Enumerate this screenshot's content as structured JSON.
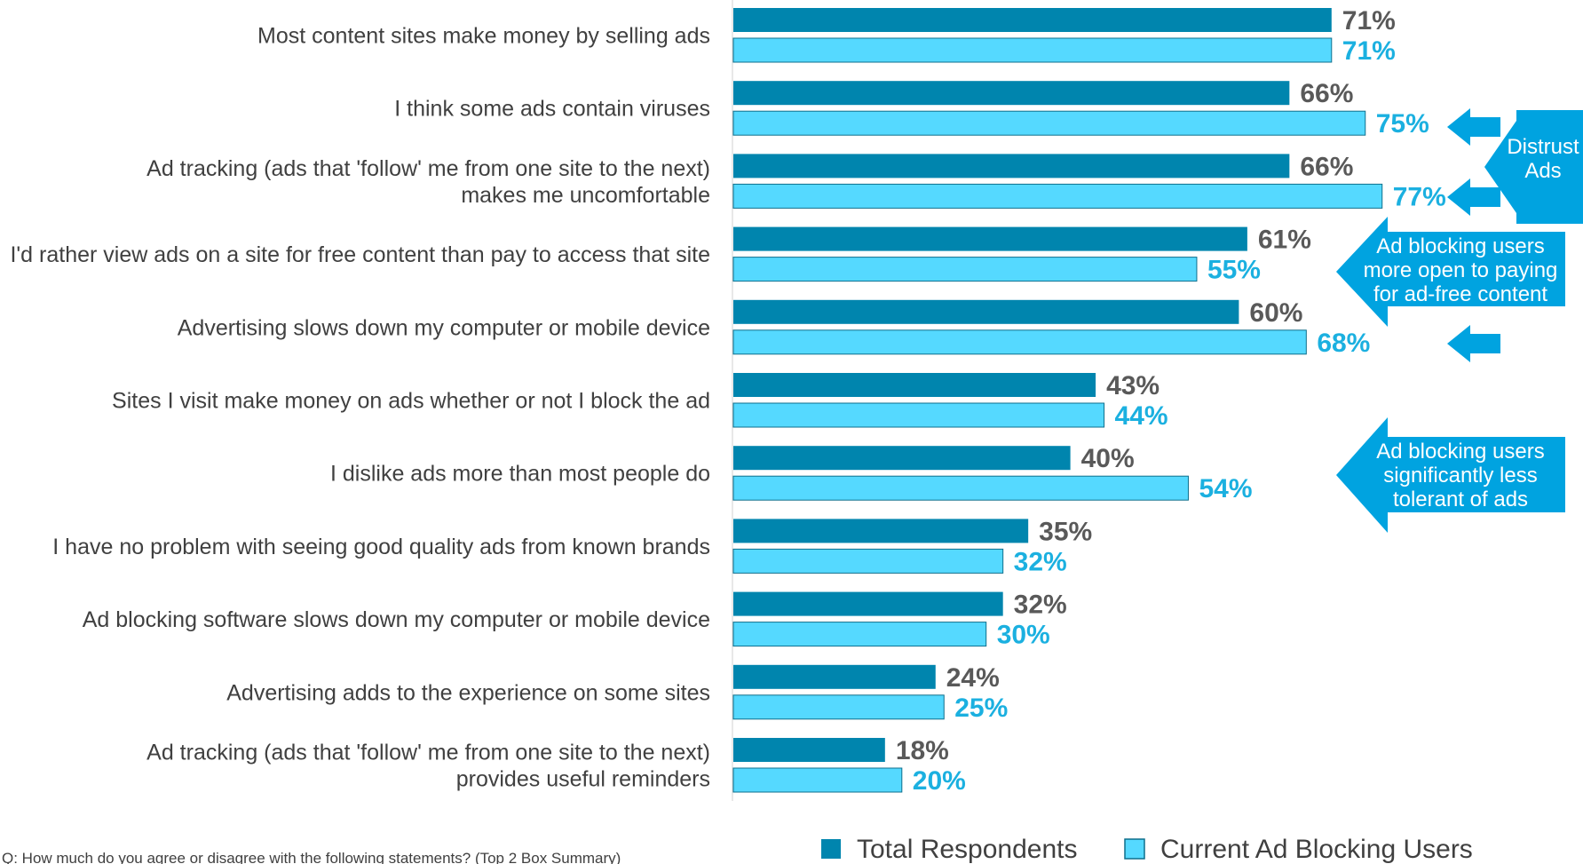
{
  "chart_data": {
    "type": "bar",
    "orientation": "horizontal",
    "categories": [
      "Most content sites make money by selling ads",
      "I think some ads contain viruses",
      "Ad tracking (ads that 'follow' me from one site to the next) makes me uncomfortable",
      "I'd rather view ads on a site for free content than pay to access that site",
      "Advertising slows down my computer or mobile device",
      "Sites I visit make money on ads whether or not I block the ad",
      "I dislike ads more than most people do",
      "I have no problem with seeing good quality ads from known brands",
      "Ad blocking software slows down my computer or mobile device",
      "Advertising adds to the experience on some sites",
      "Ad tracking (ads that 'follow' me from one site to the next) provides useful reminders"
    ],
    "category_lines": [
      [
        "Most content sites make money by selling ads"
      ],
      [
        "I think some ads contain viruses"
      ],
      [
        "Ad tracking (ads that 'follow' me from one site to the next)",
        "makes me uncomfortable"
      ],
      [
        "I'd rather view ads on a site for free content than pay to access that site"
      ],
      [
        "Advertising slows down my computer or mobile device"
      ],
      [
        "Sites I visit make money on ads whether or not I block the ad"
      ],
      [
        "I dislike ads more than most people do"
      ],
      [
        "I have no problem with seeing good quality ads from known brands"
      ],
      [
        "Ad blocking software slows down my computer or mobile device"
      ],
      [
        "Advertising adds to the experience on some sites"
      ],
      [
        "Ad tracking (ads that 'follow' me from one site to the next)",
        "provides useful reminders"
      ]
    ],
    "series": [
      {
        "name": "Total Respondents",
        "color": "#0085AE",
        "label_color": "#595959",
        "values": [
          71,
          66,
          66,
          61,
          60,
          43,
          40,
          35,
          32,
          24,
          18
        ]
      },
      {
        "name": "Current Ad Blocking Users",
        "color": "#55D9FF",
        "label_color": "#1BB0E0",
        "values": [
          71,
          75,
          77,
          55,
          68,
          44,
          54,
          32,
          30,
          25,
          20
        ]
      }
    ],
    "value_suffix": "%",
    "xlim": [
      0,
      100
    ],
    "grid": false,
    "legend_position": "bottom-right",
    "annotations": [
      {
        "text_lines": [
          "Distrust",
          "Ads"
        ],
        "color": "#00A3E0",
        "applies_to_categories": [
          1,
          2,
          4
        ]
      },
      {
        "text_lines": [
          "Ad blocking users",
          "more open to paying",
          "for ad-free content"
        ],
        "color": "#00A3E0",
        "applies_to_categories": [
          3
        ]
      },
      {
        "text_lines": [
          "Ad blocking users",
          "significantly less",
          "tolerant of ads"
        ],
        "color": "#00A3E0",
        "applies_to_categories": [
          6
        ]
      }
    ],
    "footnote": "Q: How much do you agree or disagree with the following statements? (Top 2 Box Summary)"
  }
}
